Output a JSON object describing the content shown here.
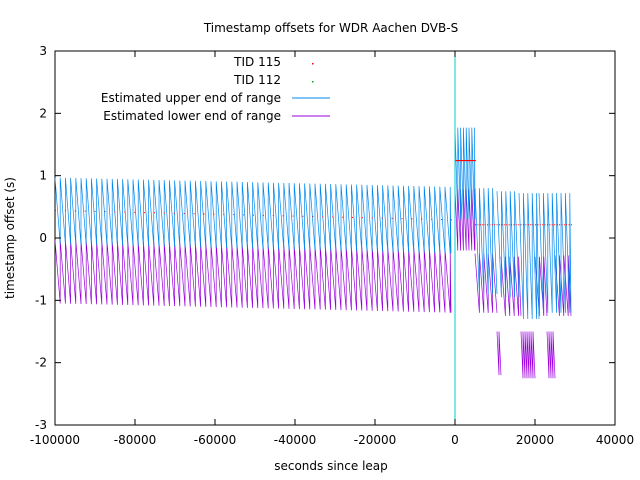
{
  "chart_data": {
    "type": "line",
    "title": "Timestamp offsets for WDR Aachen DVB-S",
    "xlabel": "seconds since leap",
    "ylabel": "timestamp offset (s)",
    "xlim": [
      -100000,
      40000
    ],
    "ylim": [
      -3,
      3
    ],
    "x_ticks": [
      -100000,
      -80000,
      -60000,
      -40000,
      -20000,
      0,
      20000,
      40000
    ],
    "y_ticks": [
      -3,
      -2,
      -1,
      0,
      1,
      2,
      3
    ],
    "x_tick_labels": [
      "-100000",
      "-80000",
      "-60000",
      "-40000",
      "-20000",
      "0",
      "20000",
      "40000"
    ],
    "y_tick_labels": [
      "-3",
      "-2",
      "-1",
      "0",
      "1",
      "2",
      "3"
    ],
    "grid": false,
    "legend_position": "top-left",
    "vertical_marker_x": 0,
    "series": [
      {
        "name": "TID 115",
        "style": "points",
        "color": "#ff0000",
        "segments": [
          {
            "x0": -100000,
            "x1": -1000,
            "upper_start": 0.95,
            "upper_end": 0.8,
            "lower_start": -0.05,
            "lower_end": -0.2
          },
          {
            "x0": 0,
            "x1": 5000,
            "upper": 1.75,
            "lower": 0.75
          },
          {
            "x0": 5000,
            "x1": 29000,
            "upper": 0.72,
            "lower": -0.28
          }
        ]
      },
      {
        "name": "TID 112",
        "style": "points",
        "color": "#00aa00",
        "segments": []
      },
      {
        "name": "Estimated upper end of range",
        "style": "line",
        "color": "#0088ee",
        "envelope": [
          {
            "x0": -100000,
            "x1": -1000,
            "top_start": 0.97,
            "top_end": 0.82,
            "bottom_start": -0.1,
            "bottom_end": -0.25,
            "period": 1300
          },
          {
            "x0": 0,
            "x1": 5000,
            "top": 1.77,
            "bottom": 0.3,
            "period": 700
          },
          {
            "x0": 5000,
            "x1": 10500,
            "top": 0.8,
            "bottom": -0.9,
            "period": 1100
          },
          {
            "x0": 10500,
            "x1": 16000,
            "top": 0.75,
            "bottom": -0.95,
            "period": 1100
          },
          {
            "x0": 16000,
            "x1": 21000,
            "top": 0.72,
            "bottom": -1.3,
            "period": 1100
          },
          {
            "x0": 21000,
            "x1": 29000,
            "top": 0.72,
            "bottom": -1.2,
            "period": 1100
          }
        ]
      },
      {
        "name": "Estimated lower end of range",
        "style": "line",
        "color": "#9900dd",
        "envelope": [
          {
            "x0": -100000,
            "x1": -1000,
            "top_start": -0.03,
            "top_end": -0.18,
            "bottom_start": -1.05,
            "bottom_end": -1.2,
            "period": 1300
          },
          {
            "x0": 0,
            "x1": 5000,
            "top": 0.78,
            "bottom": -0.2,
            "period": 700
          },
          {
            "x0": 5000,
            "x1": 10500,
            "top": -0.25,
            "bottom": -1.2,
            "period": 1100
          },
          {
            "x0": 10500,
            "x1": 11500,
            "top": -1.5,
            "bottom": -2.2,
            "period": 500
          },
          {
            "x0": 11500,
            "x1": 16500,
            "top": -0.3,
            "bottom": -1.25,
            "period": 1100
          },
          {
            "x0": 16500,
            "x1": 20000,
            "top": -1.5,
            "bottom": -2.25,
            "period": 500
          },
          {
            "x0": 20000,
            "x1": 23000,
            "top": -0.3,
            "bottom": -1.25,
            "period": 1100
          },
          {
            "x0": 23000,
            "x1": 25000,
            "top": -1.5,
            "bottom": -2.25,
            "period": 500
          },
          {
            "x0": 25000,
            "x1": 29000,
            "top": -0.28,
            "bottom": -1.25,
            "period": 1100
          }
        ]
      }
    ]
  }
}
